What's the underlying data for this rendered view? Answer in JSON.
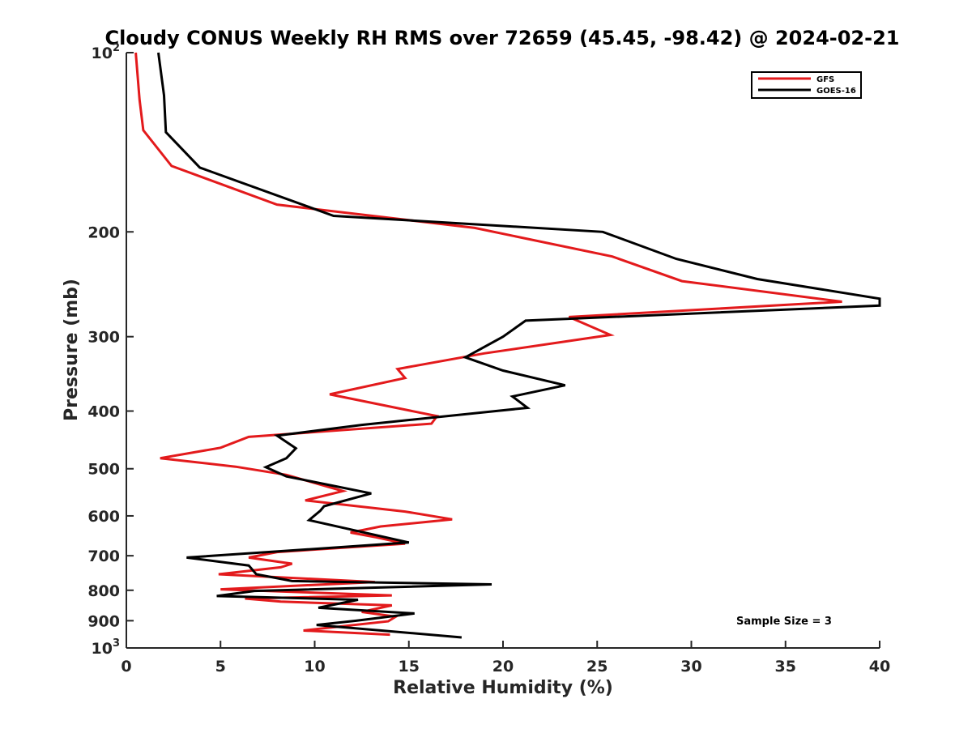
{
  "chart_data": {
    "type": "line",
    "title": "Cloudy CONUS Weekly RH RMS over 72659 (45.45, -98.42) @ 2024-02-21",
    "xlabel": "Relative Humidity (%)",
    "ylabel": "Pressure (mb)",
    "xlim": [
      0,
      40
    ],
    "ylim": [
      100,
      1000
    ],
    "y_scale": "log",
    "y_reversed": true,
    "grid": false,
    "legend_position": "top-right",
    "x_ticks": [
      0,
      5,
      10,
      15,
      20,
      25,
      30,
      35,
      40
    ],
    "x_tick_labels": [
      "0",
      "5",
      "10",
      "15",
      "20",
      "25",
      "30",
      "35",
      "40"
    ],
    "y_ticks": [
      {
        "value": 100,
        "base": "10",
        "exp": "2"
      },
      {
        "value": 200,
        "label": "200"
      },
      {
        "value": 300,
        "label": "300"
      },
      {
        "value": 400,
        "label": "400"
      },
      {
        "value": 500,
        "label": "500"
      },
      {
        "value": 600,
        "label": "600"
      },
      {
        "value": 700,
        "label": "700"
      },
      {
        "value": 800,
        "label": "800"
      },
      {
        "value": 900,
        "label": "900"
      },
      {
        "value": 1000,
        "base": "10",
        "exp": "3"
      }
    ],
    "annotation": "Sample Size = 3",
    "series": [
      {
        "name": "GFS",
        "color": "#e31a1c",
        "points": [
          [
            0.5,
            100
          ],
          [
            0.7,
            120
          ],
          [
            0.9,
            135
          ],
          [
            2.4,
            155
          ],
          [
            8.0,
            180
          ],
          [
            18.5,
            197
          ],
          [
            25.8,
            220
          ],
          [
            29.5,
            242
          ],
          [
            38.0,
            262
          ],
          [
            23.5,
            278
          ],
          [
            25.7,
            298
          ],
          [
            19.0,
            320
          ],
          [
            14.4,
            340
          ],
          [
            14.8,
            352
          ],
          [
            10.8,
            375
          ],
          [
            16.5,
            408
          ],
          [
            16.2,
            420
          ],
          [
            6.5,
            442
          ],
          [
            5.0,
            461
          ],
          [
            1.8,
            480
          ],
          [
            5.8,
            496
          ],
          [
            8.5,
            512
          ],
          [
            11.5,
            545
          ],
          [
            9.5,
            565
          ],
          [
            14.8,
            590
          ],
          [
            17.3,
            608
          ],
          [
            13.5,
            625
          ],
          [
            11.9,
            640
          ],
          [
            13.3,
            652
          ],
          [
            14.8,
            668
          ],
          [
            8.0,
            690
          ],
          [
            6.5,
            705
          ],
          [
            8.8,
            722
          ],
          [
            8.2,
            732
          ],
          [
            4.9,
            752
          ],
          [
            13.2,
            775
          ],
          [
            5.0,
            797
          ],
          [
            14.1,
            816
          ],
          [
            6.3,
            826
          ],
          [
            8.2,
            836
          ],
          [
            14.1,
            848
          ],
          [
            12.5,
            870
          ],
          [
            14.3,
            886
          ],
          [
            13.9,
            902
          ],
          [
            9.4,
            935
          ],
          [
            14.0,
            950
          ]
        ]
      },
      {
        "name": "GOES-16",
        "color": "#000000",
        "points": [
          [
            1.7,
            100
          ],
          [
            2.0,
            118
          ],
          [
            2.1,
            136
          ],
          [
            3.9,
            156
          ],
          [
            11.0,
            188
          ],
          [
            25.3,
            200
          ],
          [
            29.2,
            222
          ],
          [
            33.5,
            240
          ],
          [
            40.0,
            259
          ],
          [
            40.0,
            266
          ],
          [
            21.2,
            282
          ],
          [
            20.0,
            300
          ],
          [
            18.0,
            325
          ],
          [
            20.0,
            342
          ],
          [
            23.3,
            362
          ],
          [
            20.5,
            378
          ],
          [
            21.3,
            395
          ],
          [
            12.5,
            422
          ],
          [
            8.0,
            440
          ],
          [
            9.0,
            462
          ],
          [
            8.5,
            480
          ],
          [
            7.4,
            497
          ],
          [
            8.5,
            515
          ],
          [
            13.0,
            550
          ],
          [
            10.5,
            578
          ],
          [
            10.3,
            588
          ],
          [
            9.7,
            610
          ],
          [
            15.0,
            665
          ],
          [
            3.2,
            705
          ],
          [
            6.5,
            727
          ],
          [
            6.9,
            752
          ],
          [
            8.8,
            772
          ],
          [
            19.4,
            782
          ],
          [
            6.8,
            802
          ],
          [
            4.8,
            818
          ],
          [
            12.3,
            830
          ],
          [
            10.2,
            856
          ],
          [
            15.3,
            875
          ],
          [
            12.2,
            900
          ],
          [
            10.1,
            915
          ],
          [
            17.8,
            960
          ]
        ]
      }
    ]
  }
}
